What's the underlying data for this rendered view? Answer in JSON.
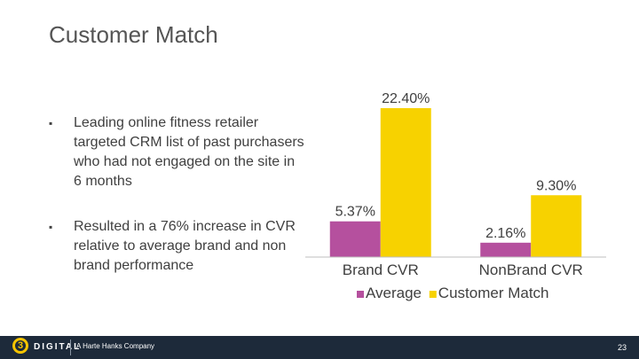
{
  "slide": {
    "title": "Customer Match",
    "bullets": [
      {
        "marker": "▪",
        "text": "Leading online fitness retailer targeted CRM list of past purchasers who had not engaged on the site in 6 months"
      },
      {
        "marker": "▪",
        "text": "Resulted in a 76% increase in CVR relative to average brand and non brand performance"
      }
    ]
  },
  "footer": {
    "logo_mark": "3",
    "logo_word": "DIGITAL",
    "company": "A Harte Hanks Company",
    "page_number": "23"
  },
  "chart_data": {
    "type": "bar",
    "categories": [
      "Brand CVR",
      "NonBrand CVR"
    ],
    "series": [
      {
        "name": "Average",
        "values": [
          5.37,
          2.16
        ],
        "labels": [
          "5.37%",
          "2.16%"
        ],
        "color": "#b5509e"
      },
      {
        "name": "Customer Match",
        "values": [
          22.4,
          9.3
        ],
        "labels": [
          "22.40%",
          "9.30%"
        ],
        "color": "#f7d200"
      }
    ],
    "ylim": [
      0,
      22.4
    ],
    "grid": false,
    "legend": "bottom",
    "axis_color": "#bfbfbf"
  }
}
